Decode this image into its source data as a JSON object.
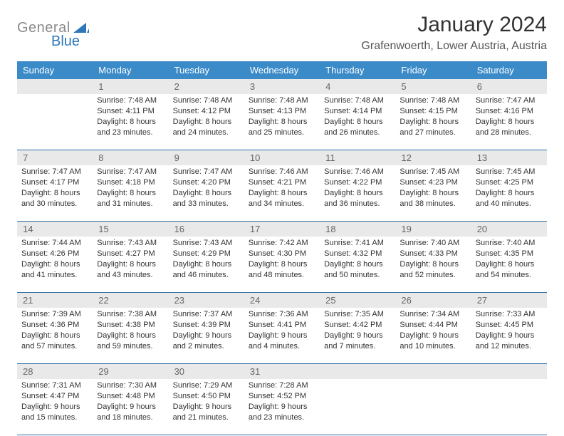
{
  "logo": {
    "general": "General",
    "blue": "Blue"
  },
  "title": "January 2024",
  "location": "Grafenwoerth, Lower Austria, Austria",
  "colors": {
    "header_bg": "#3b8bc9",
    "header_text": "#ffffff",
    "daynum_bg": "#e9e9e9",
    "daynum_text": "#666666",
    "border": "#2e6da4",
    "body_text": "#333333",
    "logo_gray": "#8a8a8a",
    "logo_blue": "#2e77b8"
  },
  "days_of_week": [
    "Sunday",
    "Monday",
    "Tuesday",
    "Wednesday",
    "Thursday",
    "Friday",
    "Saturday"
  ],
  "weeks": [
    [
      {
        "num": "",
        "sunrise": "",
        "sunset": "",
        "daylight1": "",
        "daylight2": ""
      },
      {
        "num": "1",
        "sunrise": "Sunrise: 7:48 AM",
        "sunset": "Sunset: 4:11 PM",
        "daylight1": "Daylight: 8 hours",
        "daylight2": "and 23 minutes."
      },
      {
        "num": "2",
        "sunrise": "Sunrise: 7:48 AM",
        "sunset": "Sunset: 4:12 PM",
        "daylight1": "Daylight: 8 hours",
        "daylight2": "and 24 minutes."
      },
      {
        "num": "3",
        "sunrise": "Sunrise: 7:48 AM",
        "sunset": "Sunset: 4:13 PM",
        "daylight1": "Daylight: 8 hours",
        "daylight2": "and 25 minutes."
      },
      {
        "num": "4",
        "sunrise": "Sunrise: 7:48 AM",
        "sunset": "Sunset: 4:14 PM",
        "daylight1": "Daylight: 8 hours",
        "daylight2": "and 26 minutes."
      },
      {
        "num": "5",
        "sunrise": "Sunrise: 7:48 AM",
        "sunset": "Sunset: 4:15 PM",
        "daylight1": "Daylight: 8 hours",
        "daylight2": "and 27 minutes."
      },
      {
        "num": "6",
        "sunrise": "Sunrise: 7:47 AM",
        "sunset": "Sunset: 4:16 PM",
        "daylight1": "Daylight: 8 hours",
        "daylight2": "and 28 minutes."
      }
    ],
    [
      {
        "num": "7",
        "sunrise": "Sunrise: 7:47 AM",
        "sunset": "Sunset: 4:17 PM",
        "daylight1": "Daylight: 8 hours",
        "daylight2": "and 30 minutes."
      },
      {
        "num": "8",
        "sunrise": "Sunrise: 7:47 AM",
        "sunset": "Sunset: 4:18 PM",
        "daylight1": "Daylight: 8 hours",
        "daylight2": "and 31 minutes."
      },
      {
        "num": "9",
        "sunrise": "Sunrise: 7:47 AM",
        "sunset": "Sunset: 4:20 PM",
        "daylight1": "Daylight: 8 hours",
        "daylight2": "and 33 minutes."
      },
      {
        "num": "10",
        "sunrise": "Sunrise: 7:46 AM",
        "sunset": "Sunset: 4:21 PM",
        "daylight1": "Daylight: 8 hours",
        "daylight2": "and 34 minutes."
      },
      {
        "num": "11",
        "sunrise": "Sunrise: 7:46 AM",
        "sunset": "Sunset: 4:22 PM",
        "daylight1": "Daylight: 8 hours",
        "daylight2": "and 36 minutes."
      },
      {
        "num": "12",
        "sunrise": "Sunrise: 7:45 AM",
        "sunset": "Sunset: 4:23 PM",
        "daylight1": "Daylight: 8 hours",
        "daylight2": "and 38 minutes."
      },
      {
        "num": "13",
        "sunrise": "Sunrise: 7:45 AM",
        "sunset": "Sunset: 4:25 PM",
        "daylight1": "Daylight: 8 hours",
        "daylight2": "and 40 minutes."
      }
    ],
    [
      {
        "num": "14",
        "sunrise": "Sunrise: 7:44 AM",
        "sunset": "Sunset: 4:26 PM",
        "daylight1": "Daylight: 8 hours",
        "daylight2": "and 41 minutes."
      },
      {
        "num": "15",
        "sunrise": "Sunrise: 7:43 AM",
        "sunset": "Sunset: 4:27 PM",
        "daylight1": "Daylight: 8 hours",
        "daylight2": "and 43 minutes."
      },
      {
        "num": "16",
        "sunrise": "Sunrise: 7:43 AM",
        "sunset": "Sunset: 4:29 PM",
        "daylight1": "Daylight: 8 hours",
        "daylight2": "and 46 minutes."
      },
      {
        "num": "17",
        "sunrise": "Sunrise: 7:42 AM",
        "sunset": "Sunset: 4:30 PM",
        "daylight1": "Daylight: 8 hours",
        "daylight2": "and 48 minutes."
      },
      {
        "num": "18",
        "sunrise": "Sunrise: 7:41 AM",
        "sunset": "Sunset: 4:32 PM",
        "daylight1": "Daylight: 8 hours",
        "daylight2": "and 50 minutes."
      },
      {
        "num": "19",
        "sunrise": "Sunrise: 7:40 AM",
        "sunset": "Sunset: 4:33 PM",
        "daylight1": "Daylight: 8 hours",
        "daylight2": "and 52 minutes."
      },
      {
        "num": "20",
        "sunrise": "Sunrise: 7:40 AM",
        "sunset": "Sunset: 4:35 PM",
        "daylight1": "Daylight: 8 hours",
        "daylight2": "and 54 minutes."
      }
    ],
    [
      {
        "num": "21",
        "sunrise": "Sunrise: 7:39 AM",
        "sunset": "Sunset: 4:36 PM",
        "daylight1": "Daylight: 8 hours",
        "daylight2": "and 57 minutes."
      },
      {
        "num": "22",
        "sunrise": "Sunrise: 7:38 AM",
        "sunset": "Sunset: 4:38 PM",
        "daylight1": "Daylight: 8 hours",
        "daylight2": "and 59 minutes."
      },
      {
        "num": "23",
        "sunrise": "Sunrise: 7:37 AM",
        "sunset": "Sunset: 4:39 PM",
        "daylight1": "Daylight: 9 hours",
        "daylight2": "and 2 minutes."
      },
      {
        "num": "24",
        "sunrise": "Sunrise: 7:36 AM",
        "sunset": "Sunset: 4:41 PM",
        "daylight1": "Daylight: 9 hours",
        "daylight2": "and 4 minutes."
      },
      {
        "num": "25",
        "sunrise": "Sunrise: 7:35 AM",
        "sunset": "Sunset: 4:42 PM",
        "daylight1": "Daylight: 9 hours",
        "daylight2": "and 7 minutes."
      },
      {
        "num": "26",
        "sunrise": "Sunrise: 7:34 AM",
        "sunset": "Sunset: 4:44 PM",
        "daylight1": "Daylight: 9 hours",
        "daylight2": "and 10 minutes."
      },
      {
        "num": "27",
        "sunrise": "Sunrise: 7:33 AM",
        "sunset": "Sunset: 4:45 PM",
        "daylight1": "Daylight: 9 hours",
        "daylight2": "and 12 minutes."
      }
    ],
    [
      {
        "num": "28",
        "sunrise": "Sunrise: 7:31 AM",
        "sunset": "Sunset: 4:47 PM",
        "daylight1": "Daylight: 9 hours",
        "daylight2": "and 15 minutes."
      },
      {
        "num": "29",
        "sunrise": "Sunrise: 7:30 AM",
        "sunset": "Sunset: 4:48 PM",
        "daylight1": "Daylight: 9 hours",
        "daylight2": "and 18 minutes."
      },
      {
        "num": "30",
        "sunrise": "Sunrise: 7:29 AM",
        "sunset": "Sunset: 4:50 PM",
        "daylight1": "Daylight: 9 hours",
        "daylight2": "and 21 minutes."
      },
      {
        "num": "31",
        "sunrise": "Sunrise: 7:28 AM",
        "sunset": "Sunset: 4:52 PM",
        "daylight1": "Daylight: 9 hours",
        "daylight2": "and 23 minutes."
      },
      {
        "num": "",
        "sunrise": "",
        "sunset": "",
        "daylight1": "",
        "daylight2": ""
      },
      {
        "num": "",
        "sunrise": "",
        "sunset": "",
        "daylight1": "",
        "daylight2": ""
      },
      {
        "num": "",
        "sunrise": "",
        "sunset": "",
        "daylight1": "",
        "daylight2": ""
      }
    ]
  ]
}
